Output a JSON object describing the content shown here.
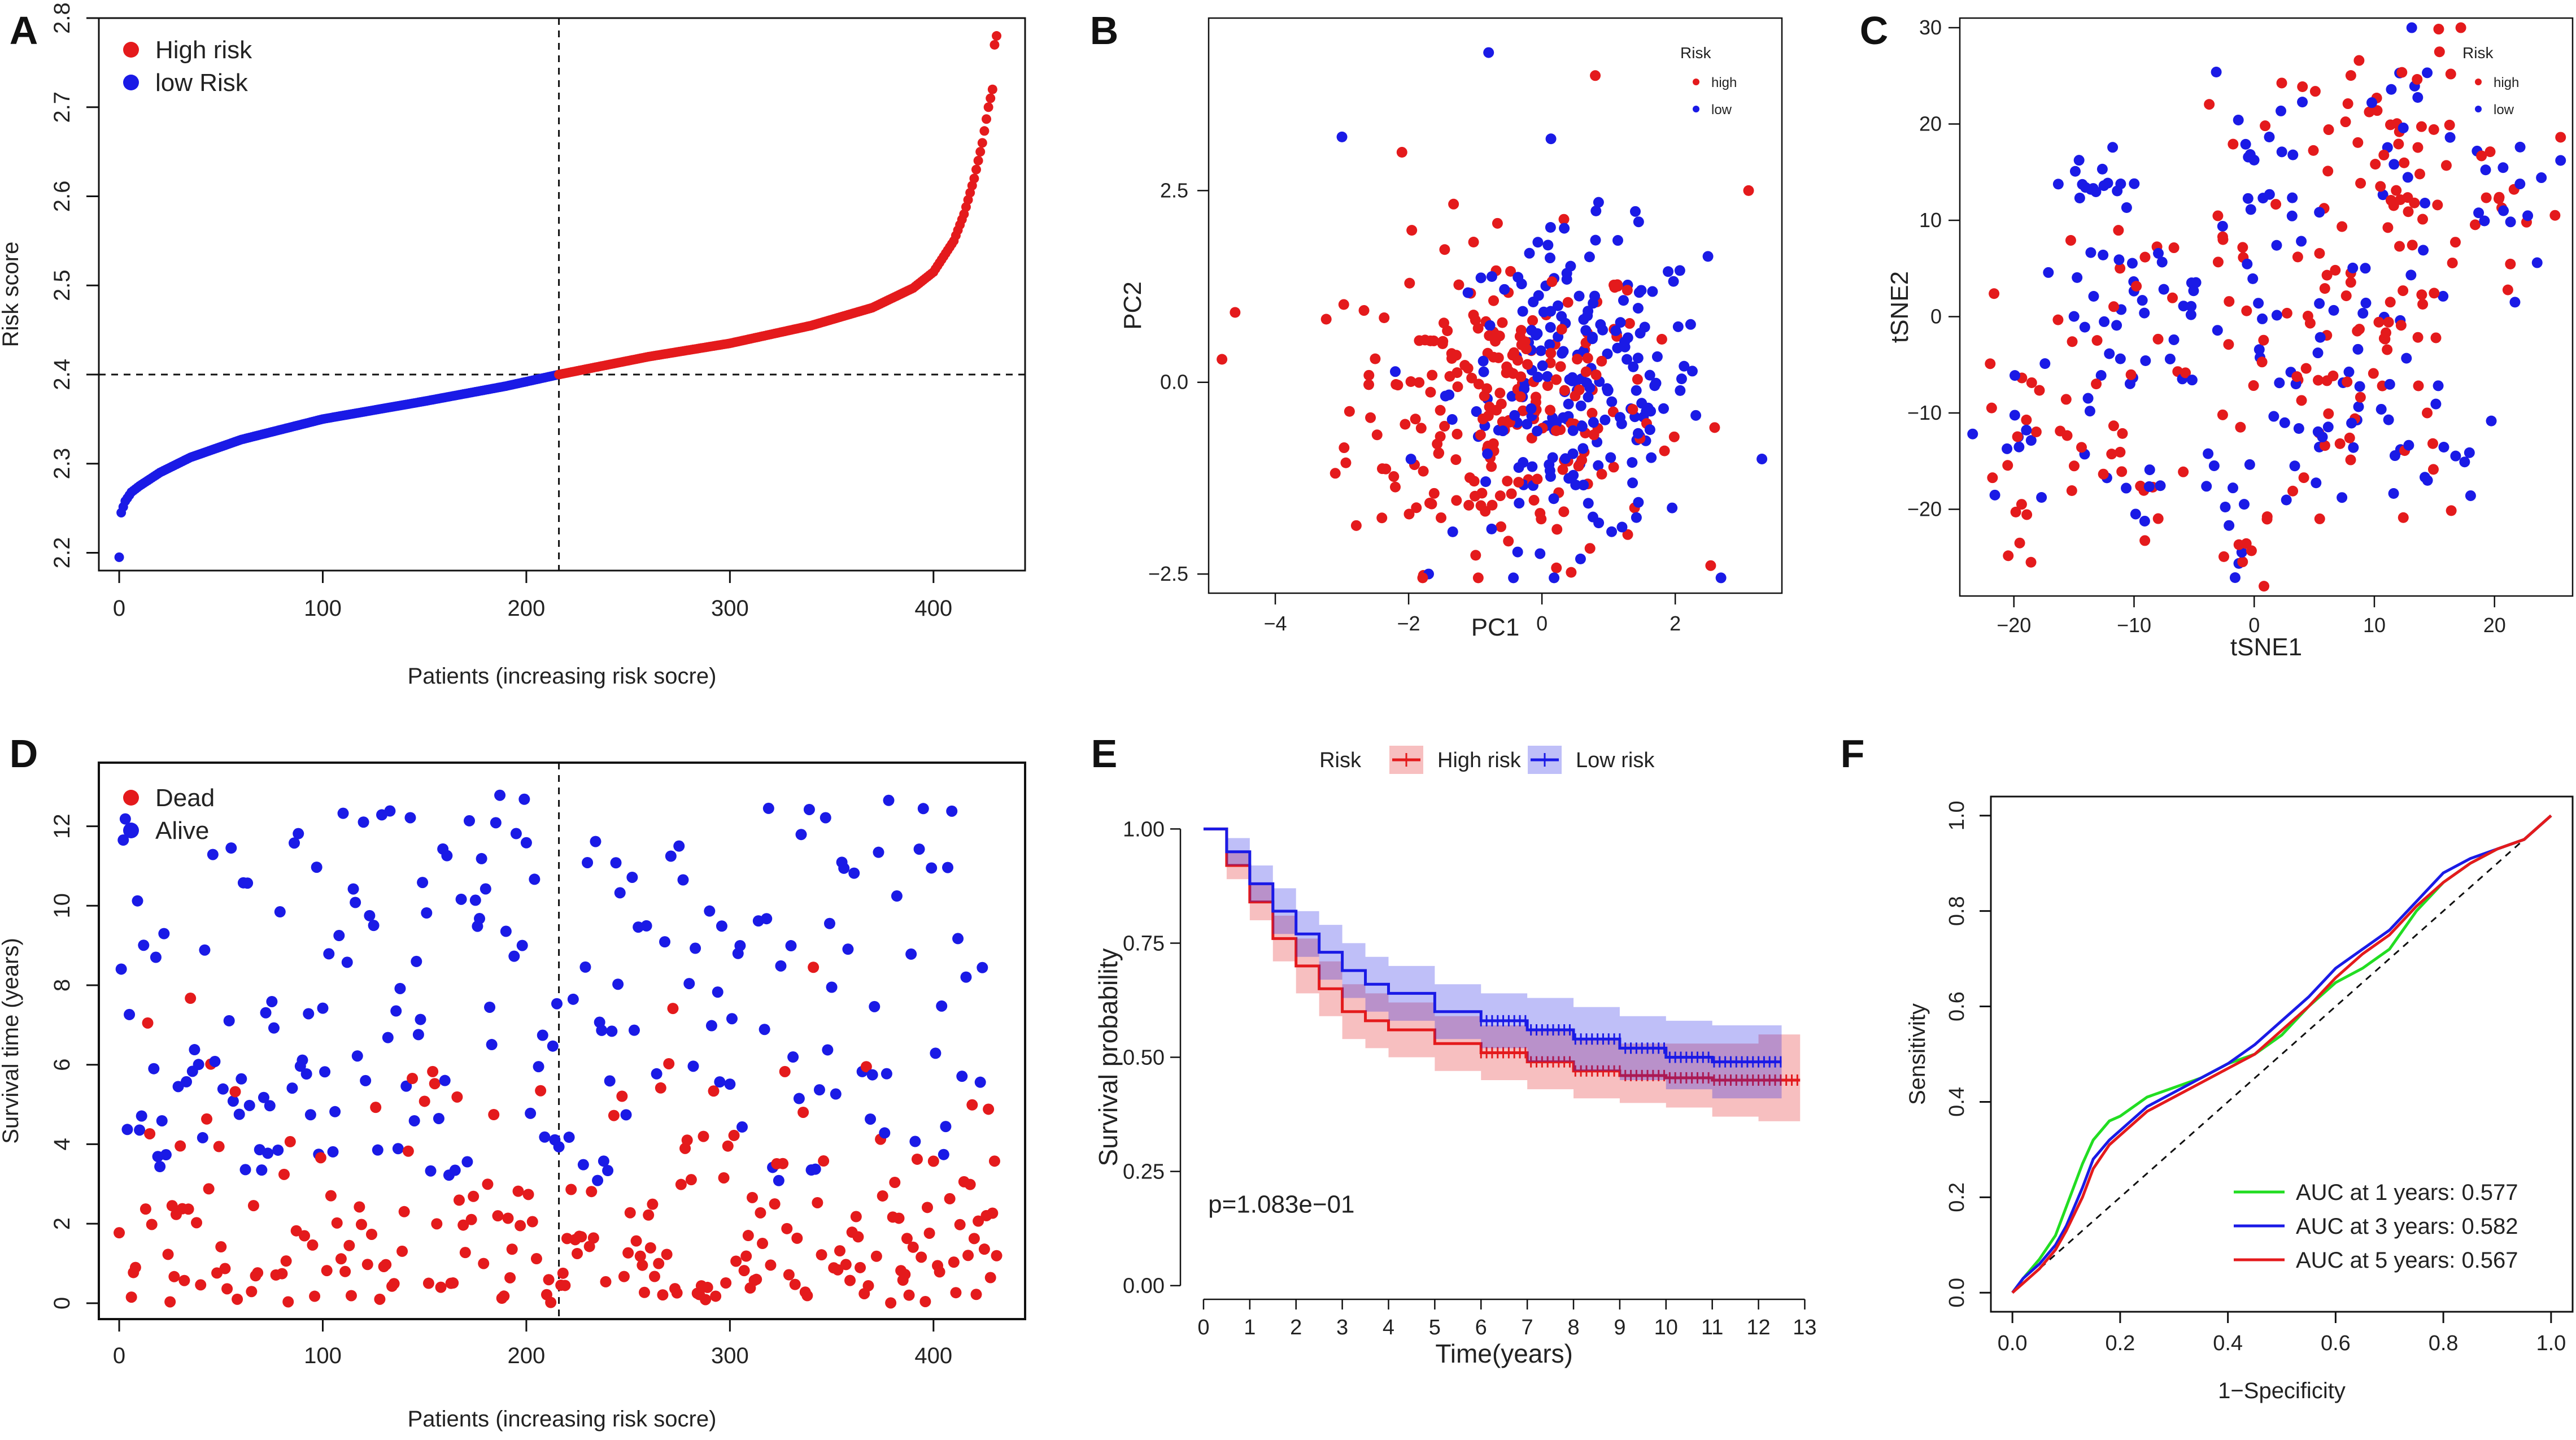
{
  "chart_data": [
    {
      "panel": "A",
      "type": "scatter",
      "panel_letter": "A",
      "xlabel": "Patients (increasing risk socre)",
      "ylabel": "Risk score",
      "xlim": [
        -10,
        445
      ],
      "ylim": [
        2.18,
        2.8
      ],
      "xticks": [
        0,
        100,
        200,
        300,
        400
      ],
      "yticks": [
        2.2,
        2.3,
        2.4,
        2.5,
        2.6,
        2.7,
        2.8
      ],
      "cutoff_x": 216,
      "cutoff_y": 2.4,
      "legend": {
        "position": "top-left",
        "entries": [
          {
            "label": "High risk",
            "color": "#e41a1c"
          },
          {
            "label": "low Risk",
            "color": "#1a1ae6"
          }
        ]
      },
      "colors": {
        "high": "#e41a1c",
        "low": "#1a1ae6"
      },
      "curve_keypoints": {
        "rank": [
          0,
          1,
          3,
          6,
          10,
          20,
          35,
          60,
          100,
          150,
          190,
          216,
          260,
          300,
          340,
          370,
          390,
          400,
          410,
          415,
          420,
          424,
          427,
          429,
          430,
          431
        ],
        "score": [
          2.195,
          2.245,
          2.258,
          2.268,
          2.275,
          2.29,
          2.307,
          2.327,
          2.35,
          2.37,
          2.387,
          2.4,
          2.42,
          2.435,
          2.455,
          2.475,
          2.497,
          2.515,
          2.55,
          2.58,
          2.62,
          2.66,
          2.7,
          2.72,
          2.77,
          2.78
        ]
      },
      "n_patients": 432
    },
    {
      "panel": "B",
      "type": "scatter",
      "panel_letter": "B",
      "xlabel": "PC1",
      "ylabel": "PC2",
      "xlim": [
        -5,
        3.6
      ],
      "ylim": [
        -2.75,
        4.75
      ],
      "xticks": [
        -4,
        -2,
        0,
        2
      ],
      "yticks": [
        -2.5,
        0.0,
        2.5
      ],
      "ytick_labels": [
        "−2.5",
        "0.0",
        "2.5"
      ],
      "xtick_labels": [
        "−4",
        "−2",
        "0",
        "2"
      ],
      "legend": {
        "position": "top-right",
        "title": "Risk",
        "entries": [
          {
            "label": "high",
            "color": "#e41a1c"
          },
          {
            "label": "low",
            "color": "#1a1ae6"
          }
        ]
      },
      "series_spec": [
        {
          "name": "high",
          "n": 230,
          "center": [
            -0.6,
            -0.3
          ],
          "spread": [
            1.15,
            1.05
          ]
        },
        {
          "name": "low",
          "n": 210,
          "center": [
            0.55,
            -0.1
          ],
          "spread": [
            0.95,
            1.0
          ]
        }
      ],
      "outliers": {
        "x": [
          -4.8,
          -3.0,
          -2.1,
          -0.8,
          0.8,
          3.3,
          3.1,
          -1.7
        ],
        "y": [
          0.3,
          3.2,
          3.0,
          4.3,
          4.0,
          -1.0,
          2.5,
          -2.5
        ]
      }
    },
    {
      "panel": "C",
      "type": "scatter",
      "panel_letter": "C",
      "xlabel": "tSNE1",
      "ylabel": "tSNE2",
      "xlim": [
        -24.5,
        26.5
      ],
      "ylim": [
        -29,
        31
      ],
      "xticks": [
        -20,
        -10,
        0,
        10,
        20
      ],
      "xtick_labels": [
        "−20",
        "−10",
        "0",
        "10",
        "20"
      ],
      "yticks": [
        -20,
        -10,
        0,
        10,
        20,
        30
      ],
      "ytick_labels": [
        "−20",
        "−10",
        "0",
        "10",
        "20",
        "30"
      ],
      "legend": {
        "position": "top-right",
        "title": "Risk",
        "entries": [
          {
            "label": "high",
            "color": "#e41a1c"
          },
          {
            "label": "low",
            "color": "#1a1ae6"
          }
        ]
      },
      "clusters": [
        {
          "cx": -19,
          "cy": -15,
          "sx": 2.5,
          "sy": 5,
          "n": 28,
          "p_high": 0.6
        },
        {
          "cx": -11,
          "cy": -17,
          "sx": 2.0,
          "sy": 3,
          "n": 20,
          "p_high": 0.8
        },
        {
          "cx": -2,
          "cy": -21,
          "sx": 1.8,
          "sy": 4,
          "n": 18,
          "p_high": 0.55
        },
        {
          "cx": -10,
          "cy": 1,
          "sx": 4,
          "sy": 6,
          "n": 60,
          "p_high": 0.3
        },
        {
          "cx": 4,
          "cy": -12,
          "sx": 3.5,
          "sy": 5,
          "n": 40,
          "p_high": 0.45
        },
        {
          "cx": 7,
          "cy": 0,
          "sx": 5,
          "sy": 5,
          "n": 70,
          "p_high": 0.55
        },
        {
          "cx": 12,
          "cy": 17,
          "sx": 4,
          "sy": 6,
          "n": 70,
          "p_high": 0.75
        },
        {
          "cx": 1,
          "cy": 16,
          "sx": 2.5,
          "sy": 5,
          "n": 25,
          "p_high": 0.35
        },
        {
          "cx": 21,
          "cy": 12,
          "sx": 2.5,
          "sy": 3.5,
          "n": 22,
          "p_high": 0.55
        },
        {
          "cx": -13,
          "cy": 14,
          "sx": 2,
          "sy": 1.5,
          "n": 14,
          "p_high": 0.0
        },
        {
          "cx": 13,
          "cy": -14,
          "sx": 3,
          "sy": 4,
          "n": 25,
          "p_high": 0.4
        }
      ]
    },
    {
      "panel": "D",
      "type": "scatter",
      "panel_letter": "D",
      "xlabel": "Patients (increasing risk socre)",
      "ylabel": "Survival time (years)",
      "xlim": [
        -10,
        445
      ],
      "ylim": [
        -0.4,
        13.6
      ],
      "xticks": [
        0,
        100,
        200,
        300,
        400
      ],
      "yticks": [
        0,
        2,
        4,
        6,
        8,
        10,
        12
      ],
      "cutoff_x": 216,
      "legend": {
        "position": "top-left",
        "entries": [
          {
            "label": "Dead",
            "color": "#e41a1c"
          },
          {
            "label": "Alive",
            "color": "#1a1ae6"
          }
        ]
      },
      "n_patients": 432,
      "dead_fraction": 0.5
    },
    {
      "panel": "E",
      "type": "line",
      "panel_letter": "E",
      "xlabel": "Time(years)",
      "ylabel": "Survival probability",
      "xlim": [
        -0.5,
        13.3
      ],
      "ylim": [
        -0.03,
        1.04
      ],
      "xticks": [
        0,
        1,
        2,
        3,
        4,
        5,
        6,
        7,
        8,
        9,
        10,
        11,
        12,
        13
      ],
      "yticks": [
        0.0,
        0.25,
        0.5,
        0.75,
        1.0
      ],
      "ytick_labels": [
        "0.00",
        "0.25",
        "0.50",
        "0.75",
        "1.00"
      ],
      "annotation": "p=1.083e−01",
      "legend": {
        "position": "top",
        "title": "Risk",
        "entries": [
          {
            "label": "High risk",
            "color": "#e41a1c"
          },
          {
            "label": "Low risk",
            "color": "#1a1ae6"
          }
        ]
      },
      "series": [
        {
          "name": "High risk",
          "color": "#e41a1c",
          "x": [
            0,
            0.5,
            1,
            1.5,
            2,
            2.5,
            3,
            3.5,
            4,
            5,
            6,
            7,
            8,
            9,
            10,
            11,
            12,
            12.9
          ],
          "y": [
            1.0,
            0.92,
            0.84,
            0.76,
            0.7,
            0.65,
            0.6,
            0.58,
            0.56,
            0.53,
            0.51,
            0.49,
            0.47,
            0.46,
            0.455,
            0.45,
            0.45,
            0.45
          ],
          "ci_low": [
            1.0,
            0.89,
            0.8,
            0.71,
            0.64,
            0.59,
            0.54,
            0.52,
            0.5,
            0.47,
            0.45,
            0.43,
            0.41,
            0.4,
            0.39,
            0.37,
            0.36,
            0.36
          ],
          "ci_high": [
            1.0,
            0.95,
            0.88,
            0.81,
            0.76,
            0.71,
            0.66,
            0.64,
            0.62,
            0.59,
            0.57,
            0.56,
            0.54,
            0.53,
            0.53,
            0.53,
            0.55,
            0.55
          ]
        },
        {
          "name": "Low risk",
          "color": "#1a1ae6",
          "x": [
            0,
            0.5,
            1,
            1.5,
            2,
            2.5,
            3,
            3.5,
            4,
            5,
            6,
            7,
            8,
            9,
            10,
            11,
            12,
            12.5
          ],
          "y": [
            1.0,
            0.95,
            0.88,
            0.82,
            0.77,
            0.73,
            0.69,
            0.66,
            0.64,
            0.6,
            0.58,
            0.56,
            0.54,
            0.52,
            0.5,
            0.49,
            0.49,
            0.49
          ],
          "ci_low": [
            1.0,
            0.92,
            0.84,
            0.77,
            0.72,
            0.67,
            0.63,
            0.6,
            0.58,
            0.54,
            0.52,
            0.49,
            0.47,
            0.45,
            0.43,
            0.41,
            0.41,
            0.41
          ],
          "ci_high": [
            1.0,
            0.98,
            0.92,
            0.87,
            0.82,
            0.79,
            0.75,
            0.72,
            0.7,
            0.66,
            0.64,
            0.63,
            0.61,
            0.59,
            0.58,
            0.57,
            0.57,
            0.57
          ]
        }
      ]
    },
    {
      "panel": "F",
      "type": "line",
      "panel_letter": "F",
      "xlabel": "1−Specificity",
      "ylabel": "Sensitivity",
      "xlim": [
        -0.04,
        1.04
      ],
      "ylim": [
        -0.04,
        1.04
      ],
      "xticks": [
        0.0,
        0.2,
        0.4,
        0.6,
        0.8,
        1.0
      ],
      "yticks": [
        0.0,
        0.2,
        0.4,
        0.6,
        0.8,
        1.0
      ],
      "tick_labels": [
        "0.0",
        "0.2",
        "0.4",
        "0.6",
        "0.8",
        "1.0"
      ],
      "legend": {
        "position": "bottom-right"
      },
      "series": [
        {
          "name": "AUC at 1 years: 0.577",
          "color": "#22dd22",
          "x": [
            0,
            0.02,
            0.05,
            0.08,
            0.1,
            0.13,
            0.15,
            0.18,
            0.2,
            0.25,
            0.3,
            0.35,
            0.4,
            0.45,
            0.5,
            0.55,
            0.6,
            0.65,
            0.7,
            0.75,
            0.8,
            0.85,
            0.9,
            0.95,
            1.0
          ],
          "y": [
            0,
            0.03,
            0.07,
            0.12,
            0.18,
            0.27,
            0.32,
            0.36,
            0.37,
            0.41,
            0.43,
            0.45,
            0.48,
            0.5,
            0.54,
            0.6,
            0.65,
            0.68,
            0.72,
            0.8,
            0.86,
            0.9,
            0.93,
            0.95,
            1.0
          ]
        },
        {
          "name": "AUC at 3 years: 0.582",
          "color": "#1a1ae6",
          "x": [
            0,
            0.02,
            0.05,
            0.08,
            0.1,
            0.13,
            0.15,
            0.18,
            0.2,
            0.25,
            0.3,
            0.35,
            0.4,
            0.45,
            0.5,
            0.55,
            0.6,
            0.65,
            0.7,
            0.75,
            0.8,
            0.85,
            0.9,
            0.95,
            1.0
          ],
          "y": [
            0,
            0.03,
            0.06,
            0.1,
            0.14,
            0.22,
            0.28,
            0.32,
            0.34,
            0.39,
            0.42,
            0.45,
            0.48,
            0.52,
            0.57,
            0.62,
            0.68,
            0.72,
            0.76,
            0.82,
            0.88,
            0.91,
            0.93,
            0.95,
            1.0
          ]
        },
        {
          "name": "AUC at 5 years: 0.567",
          "color": "#e41a1c",
          "x": [
            0,
            0.02,
            0.05,
            0.08,
            0.1,
            0.13,
            0.15,
            0.18,
            0.2,
            0.25,
            0.3,
            0.35,
            0.4,
            0.45,
            0.5,
            0.55,
            0.6,
            0.65,
            0.7,
            0.75,
            0.8,
            0.85,
            0.9,
            0.95,
            1.0
          ],
          "y": [
            0,
            0.02,
            0.05,
            0.09,
            0.13,
            0.2,
            0.26,
            0.31,
            0.33,
            0.38,
            0.41,
            0.44,
            0.47,
            0.5,
            0.55,
            0.6,
            0.66,
            0.71,
            0.75,
            0.81,
            0.86,
            0.9,
            0.93,
            0.95,
            1.0
          ]
        }
      ]
    }
  ]
}
